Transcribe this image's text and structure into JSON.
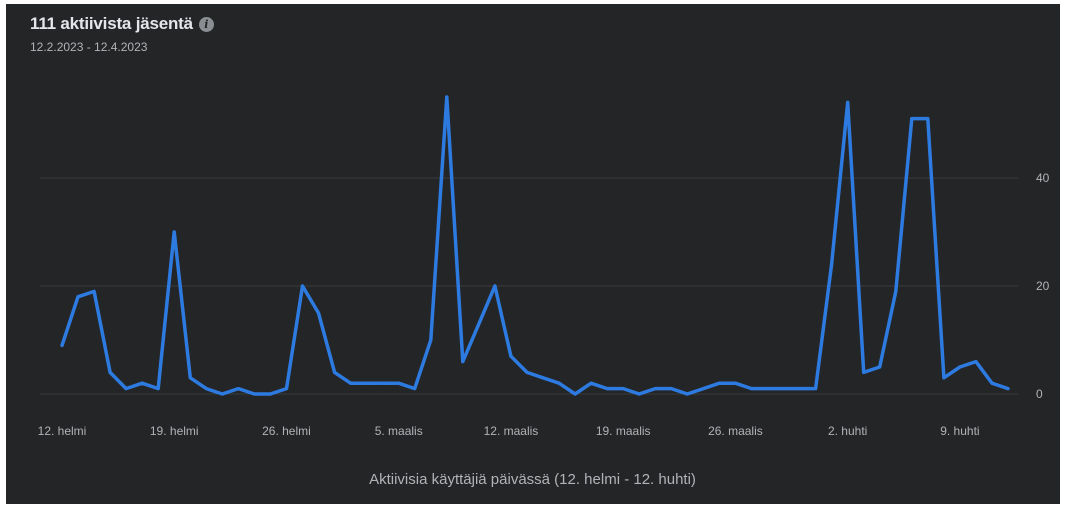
{
  "header": {
    "title": "111 aktiivista jäsentä",
    "info_icon": "info-icon",
    "date_range": "12.2.2023 - 12.4.2023"
  },
  "colors": {
    "background": "#242526",
    "line": "#2d7be0",
    "grid": "#3a3b3c",
    "text": "#b0b3b8"
  },
  "chart_data": {
    "type": "line",
    "title": "111 aktiivista jäsentä",
    "subtitle": "12.2.2023 - 12.4.2023",
    "xlabel": "Aktiivisia käyttäjiä päivässä (12. helmi - 12. huhti)",
    "ylabel": "",
    "ylim": [
      0,
      55
    ],
    "yticks": [
      0,
      20,
      40
    ],
    "xticks": [
      {
        "day": 0,
        "label": "12. helmi"
      },
      {
        "day": 7,
        "label": "19. helmi"
      },
      {
        "day": 14,
        "label": "26. helmi"
      },
      {
        "day": 21,
        "label": "5. maalis"
      },
      {
        "day": 28,
        "label": "12. maalis"
      },
      {
        "day": 35,
        "label": "19. maalis"
      },
      {
        "day": 42,
        "label": "26. maalis"
      },
      {
        "day": 49,
        "label": "2. huhti"
      },
      {
        "day": 56,
        "label": "9. huhti"
      }
    ],
    "grid": true,
    "series": [
      {
        "name": "",
        "values": [
          9,
          18,
          19,
          4,
          1,
          2,
          1,
          30,
          3,
          1,
          0,
          1,
          0,
          0,
          1,
          20,
          15,
          4,
          2,
          2,
          2,
          2,
          1,
          10,
          55,
          6,
          13,
          20,
          7,
          4,
          3,
          2,
          0,
          2,
          1,
          1,
          0,
          1,
          1,
          0,
          1,
          2,
          2,
          1,
          1,
          1,
          1,
          1,
          24,
          54,
          4,
          5,
          19,
          51,
          51,
          3,
          5,
          6,
          2,
          1
        ]
      }
    ]
  }
}
